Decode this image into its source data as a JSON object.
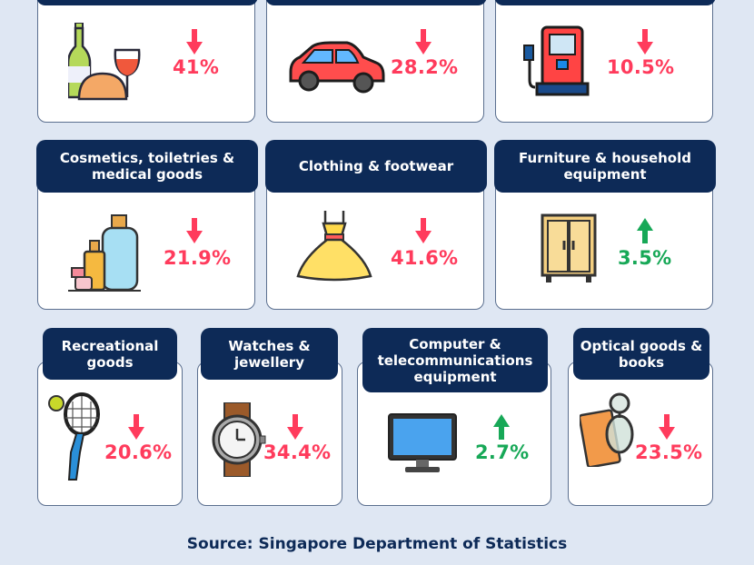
{
  "colors": {
    "header": "#0d2a57",
    "down": "#ff3b5c",
    "up": "#17a857",
    "background": "#dfe7f3"
  },
  "categories": [
    {
      "id": "food-beverage",
      "title": "",
      "icon": "wine-bread-icon",
      "direction": "down",
      "value": "41%"
    },
    {
      "id": "motor-vehicles",
      "title": "",
      "icon": "car-icon",
      "direction": "down",
      "value": "28.2%"
    },
    {
      "id": "petrol",
      "title": "",
      "icon": "fuel-pump-icon",
      "direction": "down",
      "value": "10.5%"
    },
    {
      "id": "cosmetics",
      "title": "Cosmetics, toiletries & medical goods",
      "icon": "cosmetics-icon",
      "direction": "down",
      "value": "21.9%"
    },
    {
      "id": "clothing",
      "title": "Clothing & footwear",
      "icon": "dress-icon",
      "direction": "down",
      "value": "41.6%"
    },
    {
      "id": "furniture",
      "title": "Furniture & household equipment",
      "icon": "cupboard-icon",
      "direction": "up",
      "value": "3.5%"
    },
    {
      "id": "recreational",
      "title": "Recreational goods",
      "icon": "tennis-racket-icon",
      "direction": "down",
      "value": "20.6%"
    },
    {
      "id": "watches",
      "title": "Watches & jewellery",
      "icon": "watch-icon",
      "direction": "down",
      "value": "34.4%"
    },
    {
      "id": "computer",
      "title": "Computer & telecommunications equipment",
      "icon": "monitor-icon",
      "direction": "up",
      "value": "2.7%"
    },
    {
      "id": "optical",
      "title": "Optical goods & books",
      "icon": "glasses-book-icon",
      "direction": "down",
      "value": "23.5%"
    }
  ],
  "source": "Source: Singapore Department of Statistics"
}
